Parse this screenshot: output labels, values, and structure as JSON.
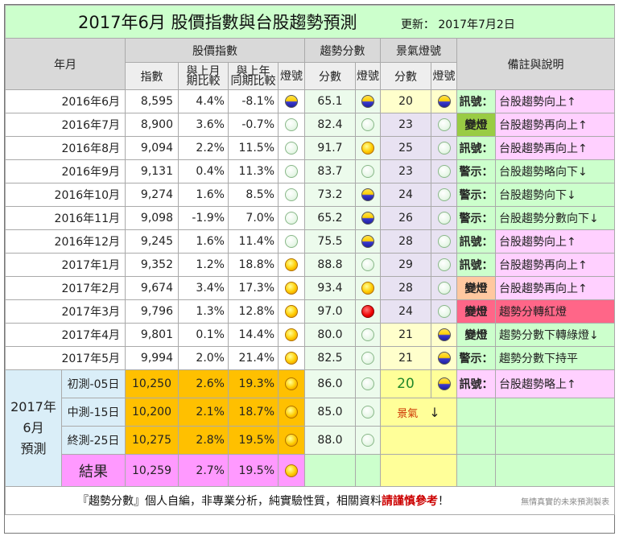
{
  "title": "2017年6月 股價指數與台股趨勢預測",
  "update": "更新： 2017年7月2日",
  "headers": {
    "year_month": "年月",
    "stock_index": "股價指數",
    "trend_score": "趨勢分數",
    "business_light": "景氣燈號",
    "remarks": "備註與說明",
    "index": "指數",
    "mom": "與上月期比較",
    "yoy": "與上年同期比較",
    "light": "燈號",
    "score": "分數"
  },
  "rows": [
    {
      "ym": "2016年6月",
      "idx": "8,595",
      "mom": "4.4%",
      "yoy": "-8.1%",
      "l1": "blue",
      "score": "65.1",
      "l2": "blue",
      "jing": "20",
      "l3": "blue",
      "tag": "訊號：",
      "note": "台股趨勢向上↑",
      "sc_class": "sc-yellow",
      "jing_class": "jing-y",
      "tag_class": "tag-green",
      "tag_bg": "#ccffcc",
      "note_bg": "#ffd0ff",
      "mom_neg": false,
      "yoy_neg": true
    },
    {
      "ym": "2016年7月",
      "idx": "8,900",
      "mom": "3.6%",
      "yoy": "-0.7%",
      "l1": "green",
      "score": "82.4",
      "l2": "green",
      "jing": "23",
      "l3": "green",
      "tag": "變燈",
      "note": "台股趨勢再向上↑",
      "sc_class": "sc-green",
      "jing_class": "",
      "tag_class": "tag-black",
      "tag_bg": "#99cc44",
      "note_bg": "#ffd0ff",
      "mom_neg": false,
      "yoy_neg": true
    },
    {
      "ym": "2016年8月",
      "idx": "9,094",
      "mom": "2.2%",
      "yoy": "11.5%",
      "l1": "green",
      "score": "91.7",
      "l2": "yellow",
      "jing": "25",
      "l3": "green",
      "tag": "訊號：",
      "note": "台股趨勢再向上↑",
      "sc_class": "sc-red",
      "jing_class": "",
      "tag_class": "tag-green",
      "tag_bg": "#ccffcc",
      "note_bg": "#ffd0ff",
      "mom_neg": false,
      "yoy_neg": false
    },
    {
      "ym": "2016年9月",
      "idx": "9,131",
      "mom": "0.4%",
      "yoy": "11.3%",
      "l1": "green",
      "score": "83.7",
      "l2": "green",
      "jing": "23",
      "l3": "green",
      "tag": "警示：",
      "note": "台股趨勢略向下↓",
      "sc_class": "sc-green",
      "jing_class": "",
      "tag_class": "tag-red",
      "tag_bg": "#ccffcc",
      "note_bg": "#ccffcc",
      "mom_neg": false,
      "yoy_neg": false
    },
    {
      "ym": "2016年10月",
      "idx": "9,274",
      "mom": "1.6%",
      "yoy": "8.5%",
      "l1": "green",
      "score": "73.2",
      "l2": "blue",
      "jing": "24",
      "l3": "green",
      "tag": "警示：",
      "note": "台股趨勢向下↓",
      "sc_class": "sc-yellow",
      "jing_class": "",
      "tag_class": "tag-red",
      "tag_bg": "#ccffcc",
      "note_bg": "#ccffcc",
      "mom_neg": false,
      "yoy_neg": false
    },
    {
      "ym": "2016年11月",
      "idx": "9,098",
      "mom": "-1.9%",
      "yoy": "7.0%",
      "l1": "green",
      "score": "65.2",
      "l2": "blue",
      "jing": "26",
      "l3": "green",
      "tag": "警示：",
      "note": "台股趨勢分數向下↓",
      "sc_class": "sc-yellow",
      "jing_class": "",
      "tag_class": "tag-red",
      "tag_bg": "#ccffcc",
      "note_bg": "#ccffcc",
      "mom_neg": true,
      "yoy_neg": false
    },
    {
      "ym": "2016年12月",
      "idx": "9,245",
      "mom": "1.6%",
      "yoy": "11.4%",
      "l1": "green",
      "score": "75.5",
      "l2": "blue",
      "jing": "28",
      "l3": "green",
      "tag": "訊號：",
      "note": "台股趨勢向上↑",
      "sc_class": "sc-yellow",
      "jing_class": "",
      "tag_class": "tag-green",
      "tag_bg": "#ccffcc",
      "note_bg": "#ffd0ff",
      "mom_neg": false,
      "yoy_neg": false
    },
    {
      "ym": "2017年1月",
      "idx": "9,352",
      "mom": "1.2%",
      "yoy": "18.8%",
      "l1": "yellow",
      "score": "88.8",
      "l2": "green",
      "jing": "29",
      "l3": "green",
      "tag": "訊號：",
      "note": "台股趨勢再向上↑",
      "sc_class": "sc-green",
      "jing_class": "",
      "tag_class": "tag-green",
      "tag_bg": "#ccffcc",
      "note_bg": "#ffd0ff",
      "mom_neg": false,
      "yoy_neg": false
    },
    {
      "ym": "2017年2月",
      "idx": "9,674",
      "mom": "3.4%",
      "yoy": "17.3%",
      "l1": "yellow",
      "score": "93.4",
      "l2": "yellow",
      "jing": "28",
      "l3": "green",
      "tag": "變燈",
      "note": "台股趨勢再向上↑",
      "sc_class": "sc-red",
      "jing_class": "",
      "tag_class": "tag-red",
      "tag_bg": "#ffc8a0",
      "note_bg": "#ffd0ff",
      "mom_neg": false,
      "yoy_neg": false
    },
    {
      "ym": "2017年3月",
      "idx": "9,796",
      "mom": "1.3%",
      "yoy": "12.8%",
      "l1": "yellow",
      "score": "97.0",
      "l2": "red",
      "jing": "24",
      "l3": "green",
      "tag": "變燈",
      "note": "趨勢分轉紅燈",
      "sc_class": "sc-red",
      "jing_class": "",
      "tag_class": "tag-black",
      "tag_bg": "#ff6688",
      "note_bg": "#ff6688",
      "mom_neg": false,
      "yoy_neg": false
    },
    {
      "ym": "2017年4月",
      "idx": "9,801",
      "mom": "0.1%",
      "yoy": "14.4%",
      "l1": "yellow",
      "score": "80.0",
      "l2": "green",
      "jing": "21",
      "l3": "blue",
      "tag": "變燈",
      "note": "趨勢分數下轉綠燈↓",
      "sc_class": "sc-green",
      "jing_class": "jing-y",
      "tag_class": "tag-black",
      "tag_bg": "#ccffcc",
      "note_bg": "#ccffcc",
      "mom_neg": false,
      "yoy_neg": false
    },
    {
      "ym": "2017年5月",
      "idx": "9,994",
      "mom": "2.0%",
      "yoy": "21.4%",
      "l1": "yellow",
      "score": "82.5",
      "l2": "green",
      "jing": "21",
      "l3": "blue",
      "tag": "警示：",
      "note": "趨勢分數下持平",
      "sc_class": "sc-green",
      "jing_class": "jing-y",
      "tag_class": "tag-black",
      "tag_bg": "#ccffcc",
      "note_bg": "#ccffcc",
      "mom_neg": false,
      "yoy_neg": false
    }
  ],
  "prediction": {
    "label": "2017年 6月 預測",
    "label_lines": [
      "2017年",
      "6月",
      "預測"
    ],
    "rows": [
      {
        "name": "初測-05日",
        "idx": "10,250",
        "mom": "2.6%",
        "yoy": "19.3%",
        "score": "86.0"
      },
      {
        "name": "中測-15日",
        "idx": "10,200",
        "mom": "2.1%",
        "yoy": "18.7%",
        "score": "85.0"
      },
      {
        "name": "終測-25日",
        "idx": "10,275",
        "mom": "2.8%",
        "yoy": "19.5%",
        "score": "88.0"
      }
    ],
    "result": {
      "name": "結果",
      "idx": "10,259",
      "mom": "2.7%",
      "yoy": "19.5%"
    },
    "jing_value": "20",
    "jing_label": "景氣",
    "jing_arrow": "↓",
    "tag": "訊號：",
    "note": "台股趨勢略上↑"
  },
  "footer": {
    "text1": "『趨勢分數』個人自編，非專業分析，純實驗性質，相關資料",
    "text2": "請謹慎參考",
    "text3": "！",
    "credit": "無情真實的未來預測製表"
  }
}
